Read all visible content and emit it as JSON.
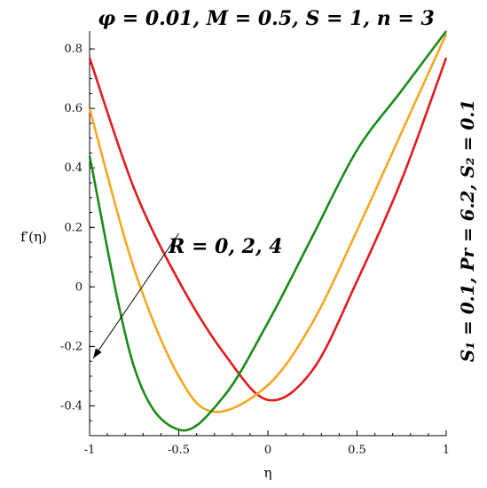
{
  "chart_data": {
    "type": "line",
    "title": "φ = 0.01, M = 0.5, S = 1, n = 3",
    "side_title": "S₁ = 0.1, Pr = 6.2, S₂ = 0.1",
    "xlabel": "η",
    "ylabel": "f′(η)",
    "xlim": [
      -1,
      1
    ],
    "ylim": [
      -0.5,
      0.86
    ],
    "xticks": [
      "-1",
      "-0.5",
      "0",
      "0.5",
      "1"
    ],
    "xtick_values": [
      -1,
      -0.5,
      0,
      0.5,
      1
    ],
    "yticks": [
      "-0.4",
      "-0.2",
      "0",
      "0.2",
      "0.4",
      "0.6",
      "0.8"
    ],
    "ytick_values": [
      -0.4,
      -0.2,
      0,
      0.2,
      0.4,
      0.6,
      0.8
    ],
    "annotation": "R = 0, 2, 4",
    "arrow": {
      "from": [
        -0.5,
        0.18
      ],
      "to": [
        -0.98,
        -0.24
      ]
    },
    "grid": false,
    "series": [
      {
        "color": "#e31a1c",
        "x": [
          -1,
          -0.75,
          -0.5,
          -0.25,
          0,
          0.25,
          0.5,
          0.75,
          1
        ],
        "values": [
          0.77,
          0.33,
          0.02,
          -0.22,
          -0.38,
          -0.28,
          0.02,
          0.36,
          0.77
        ]
      },
      {
        "color": "#f5a623",
        "x": [
          -1,
          -0.75,
          -0.5,
          -0.3,
          0,
          0.25,
          0.5,
          0.75,
          1
        ],
        "values": [
          0.6,
          0.06,
          -0.3,
          -0.42,
          -0.33,
          -0.12,
          0.19,
          0.52,
          0.85
        ]
      },
      {
        "color": "#1a8a1a",
        "x": [
          -1,
          -0.75,
          -0.5,
          -0.25,
          0,
          0.25,
          0.5,
          0.75,
          1
        ],
        "values": [
          0.44,
          -0.27,
          -0.48,
          -0.37,
          -0.12,
          0.17,
          0.46,
          0.66,
          0.86
        ]
      }
    ]
  }
}
